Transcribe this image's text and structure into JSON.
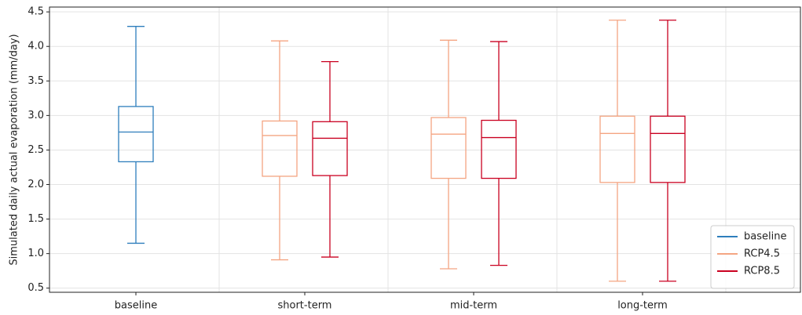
{
  "chart_data": {
    "type": "box",
    "ylabel": "Simulated daily actual evaporation (mm/day)",
    "categories": [
      "baseline",
      "short-term",
      "mid-term",
      "long-term"
    ],
    "ylim": [
      0.44,
      4.57
    ],
    "yticks": [
      0.5,
      {
        "value": 1.0,
        "label": "1.0"
      },
      1.5,
      {
        "value": 2.0,
        "label": "2.0"
      },
      2.5,
      {
        "value": 3.0,
        "label": "3.0"
      },
      3.5,
      {
        "value": 4.0,
        "label": "4.0"
      },
      4.5
    ],
    "grid": true,
    "legend": "lower right",
    "series": [
      {
        "name": "baseline",
        "color": "#2e7ebc",
        "values": [
          {
            "whislo": 1.15,
            "q1": 2.33,
            "med": 2.76,
            "q3": 3.13,
            "whishi": 4.29
          },
          null,
          null,
          null
        ]
      },
      {
        "name": "RCP4.5",
        "color": "#f4a582",
        "values": [
          null,
          {
            "whislo": 0.91,
            "q1": 2.12,
            "med": 2.71,
            "q3": 2.92,
            "whishi": 4.08
          },
          {
            "whislo": 0.78,
            "q1": 2.09,
            "med": 2.73,
            "q3": 2.97,
            "whishi": 4.09
          },
          {
            "whislo": 0.6,
            "q1": 2.03,
            "med": 2.74,
            "q3": 2.99,
            "whishi": 4.38
          }
        ]
      },
      {
        "name": "RCP8.5",
        "color": "#ca0020",
        "values": [
          null,
          {
            "whislo": 0.95,
            "q1": 2.13,
            "med": 2.67,
            "q3": 2.91,
            "whishi": 3.78
          },
          {
            "whislo": 0.83,
            "q1": 2.09,
            "med": 2.68,
            "q3": 2.93,
            "whishi": 4.07
          },
          {
            "whislo": 0.6,
            "q1": 2.03,
            "med": 2.74,
            "q3": 2.99,
            "whishi": 4.38
          }
        ]
      }
    ]
  }
}
